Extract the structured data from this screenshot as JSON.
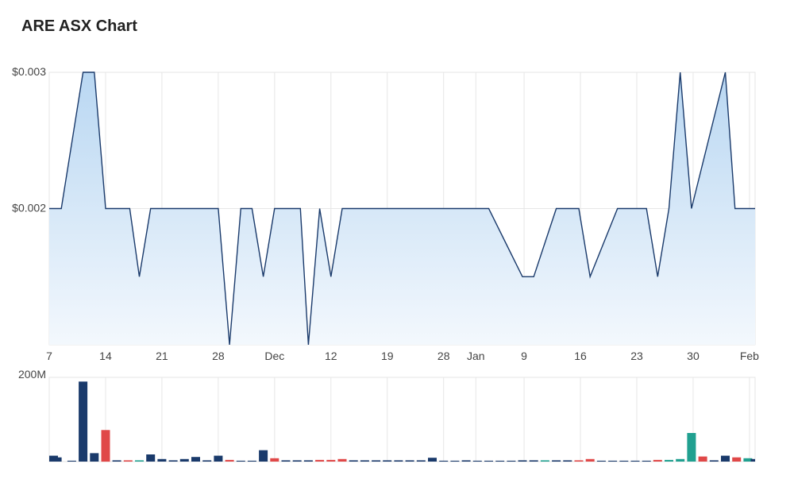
{
  "title": "ARE ASX Chart",
  "colors": {
    "line": "#1a3a6b",
    "area_top": "#b9d7f2",
    "area_bottom": "#f3f8fd",
    "grid": "#e6e6e6",
    "vol_neutral": "#1a3a6b",
    "vol_down": "#e04848",
    "vol_up": "#20a090"
  },
  "chart_data": [
    {
      "type": "area",
      "title": "ARE ASX Chart",
      "y_ticks": [
        {
          "value": 0.003,
          "label": "$0.003"
        },
        {
          "value": 0.002,
          "label": "$0.002"
        }
      ],
      "ylim": [
        0.001,
        0.003
      ],
      "x_ticks": [
        {
          "day": 0,
          "label": "7"
        },
        {
          "day": 7,
          "label": "14"
        },
        {
          "day": 14,
          "label": "21"
        },
        {
          "day": 21,
          "label": "28"
        },
        {
          "day": 28,
          "label": "Dec"
        },
        {
          "day": 35,
          "label": "12"
        },
        {
          "day": 42,
          "label": "19"
        },
        {
          "day": 49,
          "label": "28"
        },
        {
          "day": 53,
          "label": "Jan"
        },
        {
          "day": 59,
          "label": "9"
        },
        {
          "day": 66,
          "label": "16"
        },
        {
          "day": 73,
          "label": "23"
        },
        {
          "day": 80,
          "label": "30"
        },
        {
          "day": 87,
          "label": "Feb"
        }
      ],
      "xlim": [
        0,
        87.7
      ],
      "series": [
        {
          "x": [
            0,
            1.5,
            4.2,
            5.6,
            7.0,
            10.0,
            11.2,
            12.6,
            21.0,
            22.4,
            23.8,
            25.2,
            26.6,
            28.0,
            29.4,
            31.2,
            32.2,
            33.6,
            35.0,
            36.4,
            37.8,
            54.6,
            58.8,
            60.2,
            63.0,
            65.8,
            67.2,
            70.6,
            72.8,
            74.2,
            75.6,
            77.0,
            78.4,
            79.8,
            84.0,
            85.2,
            86.3,
            87.7
          ],
          "values": [
            0.002,
            0.002,
            0.003,
            0.003,
            0.002,
            0.002,
            0.0015,
            0.002,
            0.002,
            0.001,
            0.002,
            0.002,
            0.0015,
            0.002,
            0.002,
            0.002,
            0.001,
            0.002,
            0.0015,
            0.002,
            0.002,
            0.002,
            0.0015,
            0.0015,
            0.002,
            0.002,
            0.0015,
            0.002,
            0.002,
            0.002,
            0.0015,
            0.002,
            0.003,
            0.002,
            0.003,
            0.002,
            0.002,
            0.002
          ]
        }
      ]
    },
    {
      "type": "bar",
      "y_ticks": [
        {
          "value": 200,
          "label": "200M"
        }
      ],
      "ylim": [
        0,
        200
      ],
      "xlim": [
        0,
        87.7
      ],
      "x": [
        0,
        1,
        2.8,
        4.2,
        5.6,
        7.0,
        8.4,
        9.8,
        11.2,
        12.6,
        14.0,
        15.4,
        16.8,
        18.2,
        19.6,
        21.0,
        22.4,
        23.8,
        25.2,
        26.6,
        28.0,
        29.4,
        30.8,
        32.2,
        33.6,
        35.0,
        36.4,
        37.8,
        39.2,
        40.6,
        42.0,
        43.4,
        44.8,
        46.2,
        47.6,
        49.0,
        50.4,
        51.8,
        53.2,
        54.6,
        56.0,
        57.4,
        58.8,
        60.2,
        61.6,
        63.0,
        64.4,
        65.8,
        67.2,
        68.6,
        70.0,
        71.4,
        72.8,
        74.2,
        75.6,
        77.0,
        78.4,
        79.8,
        81.2,
        82.6,
        84.0,
        85.4,
        86.8,
        87.7
      ],
      "values": [
        14,
        10,
        2,
        190,
        20,
        75,
        3,
        3,
        3,
        17,
        6,
        3,
        6,
        11,
        3,
        14,
        4,
        2,
        2,
        27,
        8,
        3,
        3,
        3,
        4,
        4,
        6,
        3,
        3,
        3,
        3,
        3,
        3,
        3,
        9,
        2,
        2,
        3,
        2,
        2,
        2,
        2,
        3,
        3,
        3,
        3,
        3,
        3,
        6,
        2,
        2,
        2,
        2,
        2,
        4,
        4,
        6,
        68,
        12,
        3,
        14,
        10,
        8,
        6
      ],
      "kinds": [
        "n",
        "n",
        "n",
        "n",
        "n",
        "d",
        "n",
        "d",
        "u",
        "n",
        "n",
        "n",
        "n",
        "n",
        "n",
        "n",
        "d",
        "n",
        "n",
        "n",
        "d",
        "n",
        "n",
        "n",
        "d",
        "d",
        "d",
        "n",
        "n",
        "n",
        "n",
        "n",
        "n",
        "n",
        "n",
        "n",
        "n",
        "n",
        "n",
        "n",
        "n",
        "n",
        "n",
        "n",
        "u",
        "n",
        "n",
        "d",
        "d",
        "n",
        "n",
        "n",
        "n",
        "n",
        "d",
        "u",
        "u",
        "u",
        "d",
        "n",
        "n",
        "d",
        "u",
        "n"
      ]
    }
  ]
}
